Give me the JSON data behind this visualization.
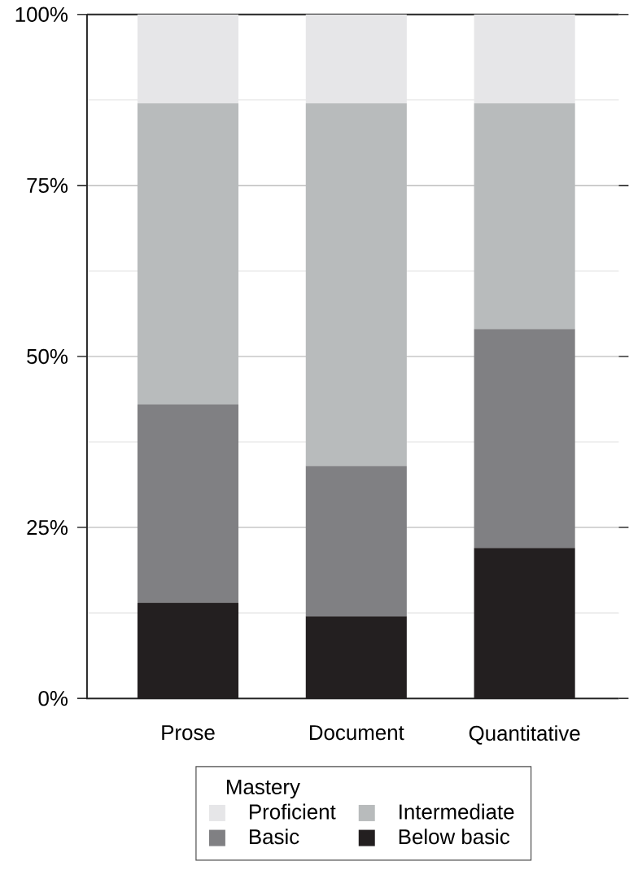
{
  "chart_data": {
    "type": "bar",
    "stacked": true,
    "categories": [
      "Prose",
      "Document",
      "Quantitative"
    ],
    "series": [
      {
        "name": "Below basic",
        "color": "#231f20",
        "values": [
          14,
          12,
          22
        ]
      },
      {
        "name": "Basic",
        "color": "#808083",
        "values": [
          29,
          22,
          32
        ]
      },
      {
        "name": "Intermediate",
        "color": "#b8bbbc",
        "values": [
          44,
          53,
          33
        ]
      },
      {
        "name": "Proficient",
        "color": "#e6e6e8",
        "values": [
          13,
          13,
          13
        ]
      }
    ],
    "ylim": [
      0,
      100
    ],
    "yticks": [
      {
        "value": 0,
        "label": "0%"
      },
      {
        "value": 12.5,
        "label": null
      },
      {
        "value": 25,
        "label": "25%"
      },
      {
        "value": 37.5,
        "label": null
      },
      {
        "value": 50,
        "label": "50%"
      },
      {
        "value": 62.5,
        "label": null
      },
      {
        "value": 75,
        "label": "75%"
      },
      {
        "value": 87.5,
        "label": null
      },
      {
        "value": 100,
        "label": "100%"
      }
    ],
    "grid": "y",
    "legend": "bottom",
    "legend_title": "Mastery"
  }
}
